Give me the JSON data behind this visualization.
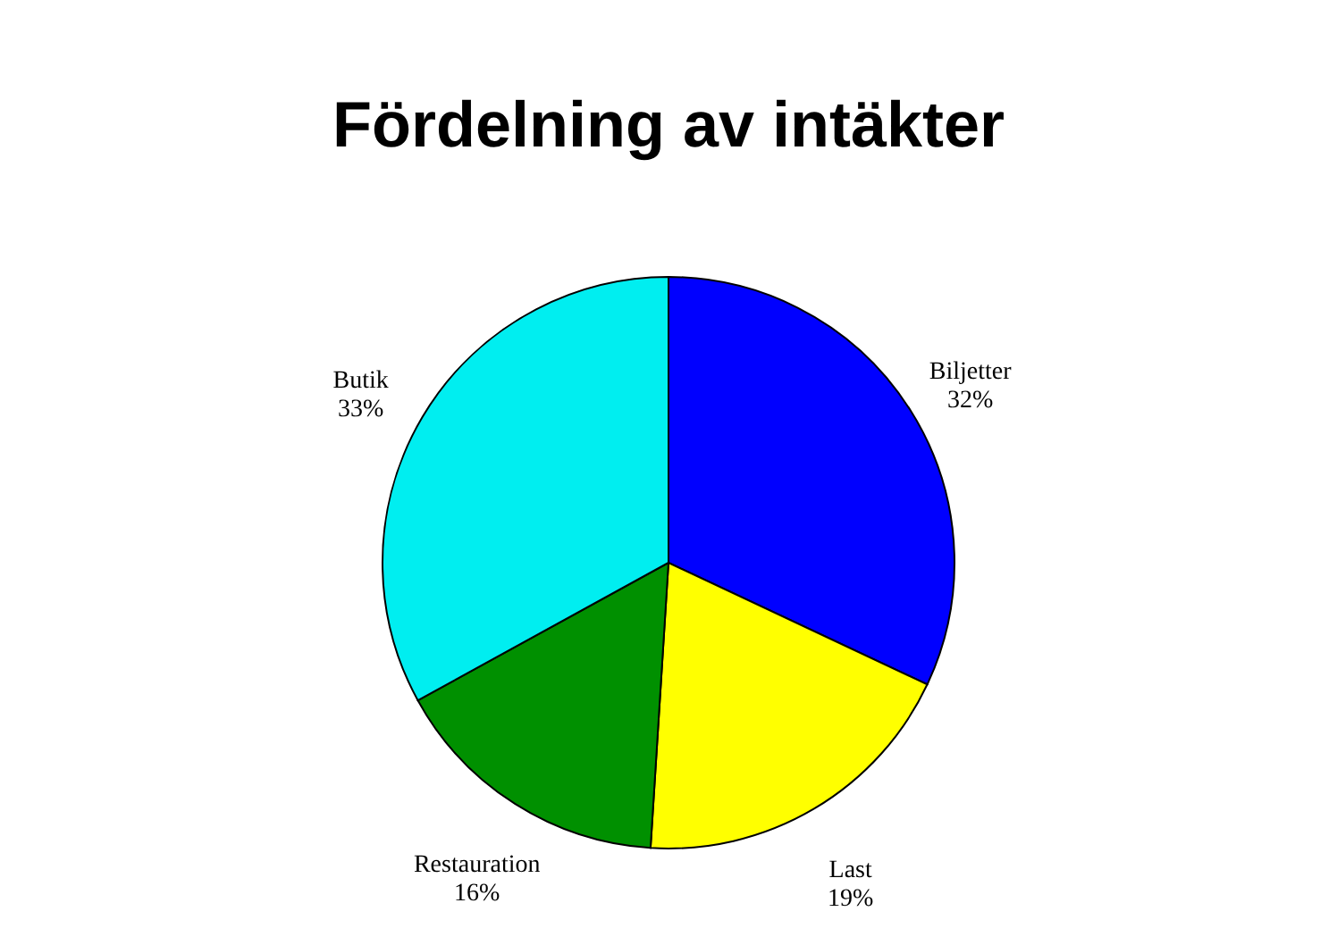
{
  "chart_data": {
    "type": "pie",
    "title": "Fördelning av intäkter",
    "categories": [
      "Biljetter",
      "Last",
      "Restauration",
      "Butik"
    ],
    "values": [
      32,
      19,
      16,
      33
    ],
    "value_labels": [
      "32%",
      "19%",
      "16%",
      "33%"
    ],
    "colors": [
      "#0000ff",
      "#ffff00",
      "#009000",
      "#00eef0"
    ],
    "legend": false
  }
}
